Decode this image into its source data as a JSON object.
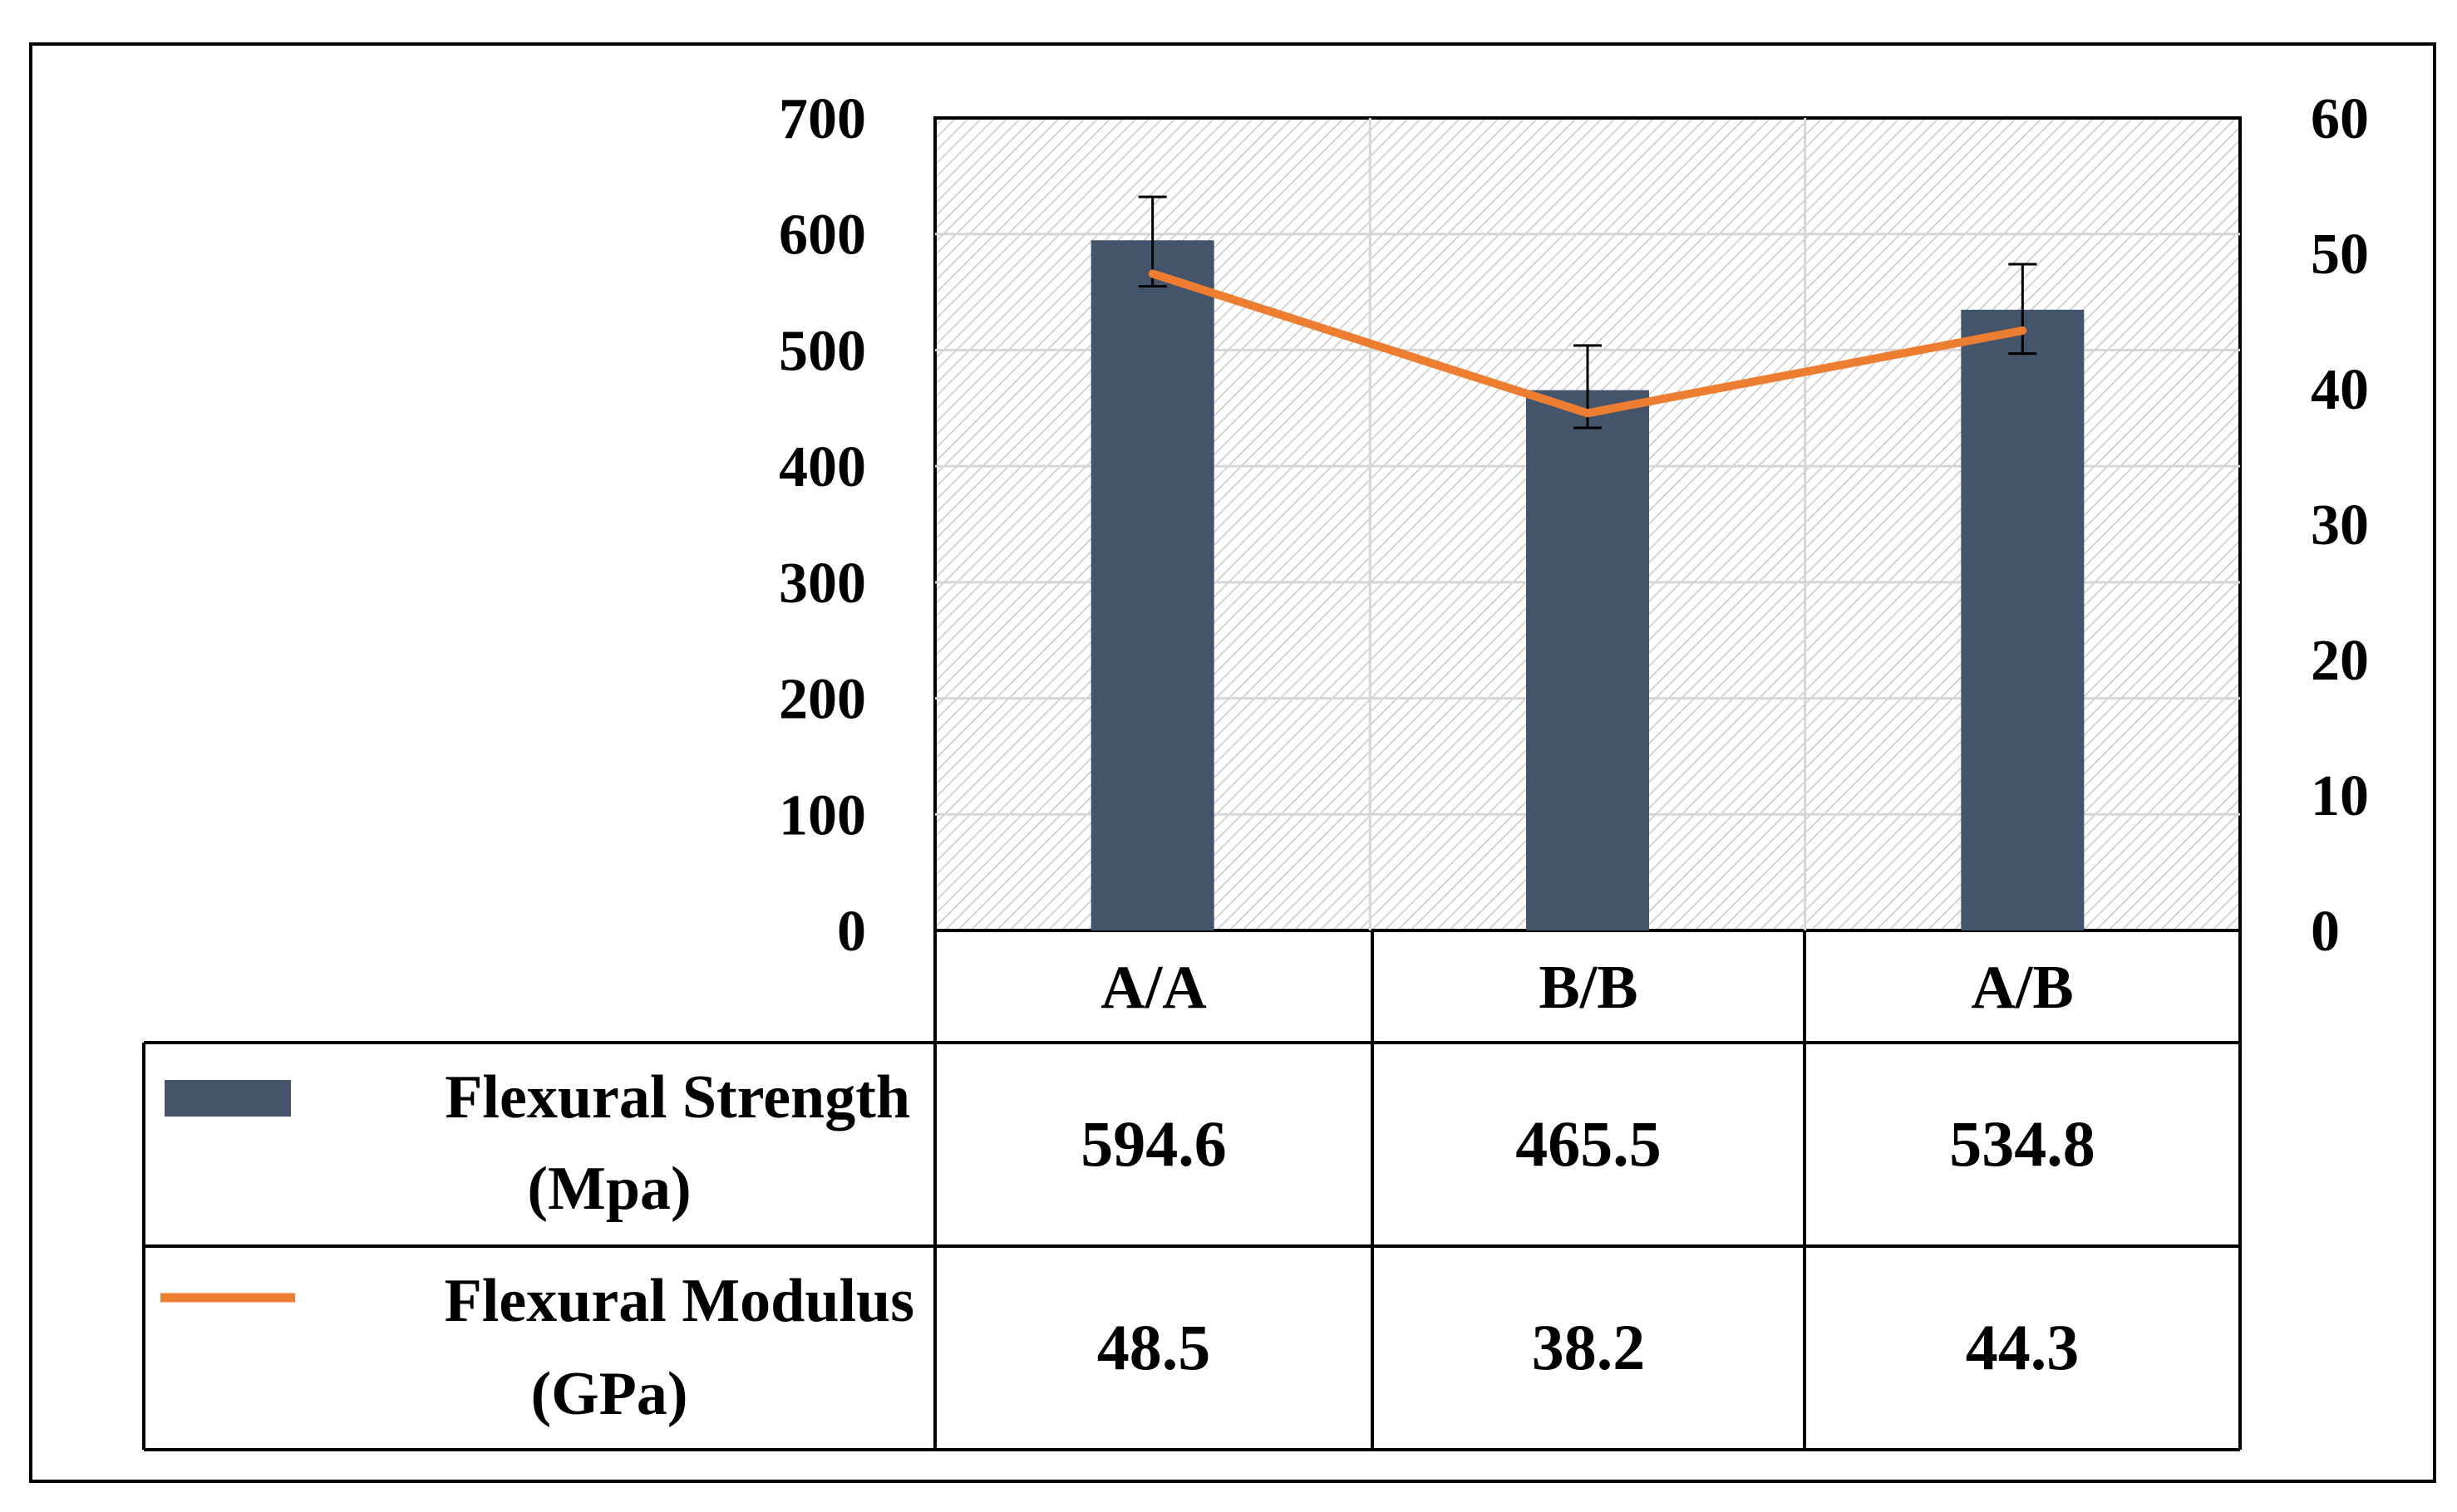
{
  "chart_data": {
    "type": "bar",
    "categories": [
      "A/A",
      "B/B",
      "A/B"
    ],
    "series": [
      {
        "name": "Flexural Strength",
        "unit": "(Mpa)",
        "kind": "bar",
        "axis": "left",
        "color": "#44546a",
        "values": [
          594.6,
          465.5,
          534.8
        ],
        "error_low": [
          555,
          433,
          497
        ],
        "error_high": [
          632,
          504,
          574
        ]
      },
      {
        "name": "Flexural Modulus",
        "unit": "(GPa)",
        "kind": "line",
        "axis": "right",
        "color": "#ed7d31",
        "values": [
          48.5,
          38.2,
          44.3
        ]
      }
    ],
    "y_left": {
      "ylim": [
        0,
        700
      ],
      "ticks": [
        "700",
        "600",
        "500",
        "400",
        "300",
        "200",
        "100",
        "0"
      ]
    },
    "y_right": {
      "ylim": [
        0,
        60
      ],
      "ticks": [
        "60",
        "50",
        "40",
        "30",
        "20",
        "10",
        "0"
      ]
    },
    "data_table": {
      "rows": [
        {
          "label1": "Flexural Strength",
          "label2": "(Mpa)",
          "cells": [
            "594.6",
            "465.5",
            "534.8"
          ]
        },
        {
          "label1": "Flexural Modulus",
          "label2": "(GPa)",
          "cells": [
            "48.5",
            "38.2",
            "44.3"
          ]
        }
      ]
    },
    "grid": true,
    "plot_background": "hatched"
  }
}
